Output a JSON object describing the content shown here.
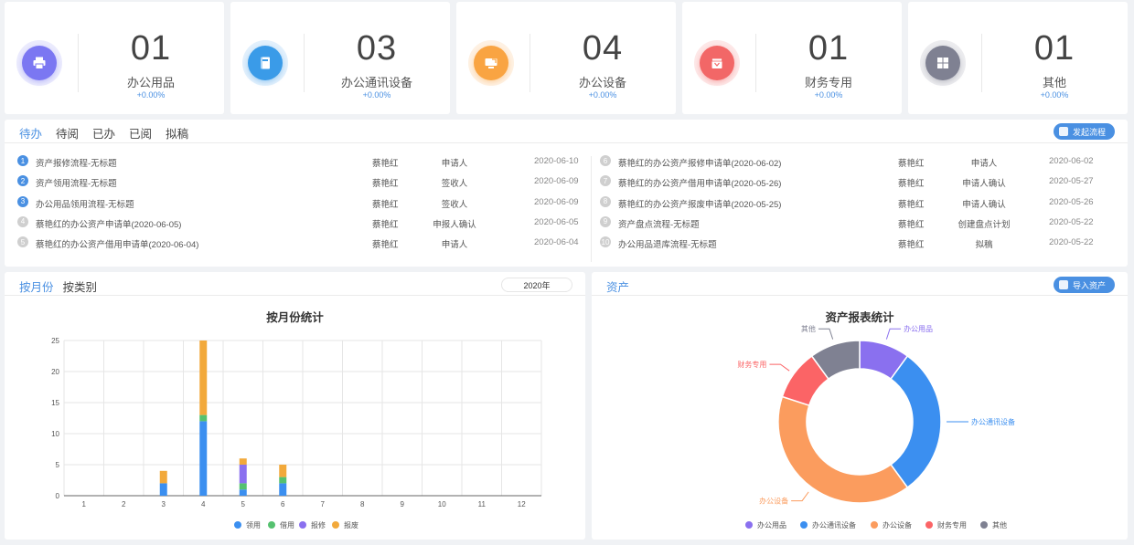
{
  "stats": [
    {
      "num": "01",
      "name": "办公用品",
      "pct": "+0.00%",
      "icon": "printer-icon",
      "color": "#7b77f2"
    },
    {
      "num": "03",
      "name": "办公通讯设备",
      "pct": "+0.00%",
      "icon": "phonebook-icon",
      "color": "#3a9be8"
    },
    {
      "num": "04",
      "name": "办公设备",
      "pct": "+0.00%",
      "icon": "device-icon",
      "color": "#f9a442"
    },
    {
      "num": "01",
      "name": "财务专用",
      "pct": "+0.00%",
      "icon": "finance-icon",
      "color": "#f26767"
    },
    {
      "num": "01",
      "name": "其他",
      "pct": "+0.00%",
      "icon": "grid-icon",
      "color": "#7f8192"
    }
  ],
  "todo": {
    "tabs": [
      "待办",
      "待阅",
      "已办",
      "已阅",
      "拟稿"
    ],
    "start_button": "发起流程",
    "left": [
      {
        "n": "1",
        "title": "资产报修流程-无标题",
        "person": "蔡艳红",
        "role": "申请人",
        "date": "2020-06-10"
      },
      {
        "n": "2",
        "title": "资产领用流程-无标题",
        "person": "蔡艳红",
        "role": "签收人",
        "date": "2020-06-09"
      },
      {
        "n": "3",
        "title": "办公用品领用流程-无标题",
        "person": "蔡艳红",
        "role": "签收人",
        "date": "2020-06-09"
      },
      {
        "n": "4",
        "title": "蔡艳红的办公资产申请单(2020-06-05)",
        "person": "蔡艳红",
        "role": "申报人确认",
        "date": "2020-06-05"
      },
      {
        "n": "5",
        "title": "蔡艳红的办公资产借用申请单(2020-06-04)",
        "person": "蔡艳红",
        "role": "申请人",
        "date": "2020-06-04"
      }
    ],
    "right": [
      {
        "n": "6",
        "title": "蔡艳红的办公资产报修申请单(2020-06-02)",
        "person": "蔡艳红",
        "role": "申请人",
        "date": "2020-06-02"
      },
      {
        "n": "7",
        "title": "蔡艳红的办公资产借用申请单(2020-05-26)",
        "person": "蔡艳红",
        "role": "申请人确认",
        "date": "2020-05-27"
      },
      {
        "n": "8",
        "title": "蔡艳红的办公资产报废申请单(2020-05-25)",
        "person": "蔡艳红",
        "role": "申请人确认",
        "date": "2020-05-26"
      },
      {
        "n": "9",
        "title": "资产盘点流程-无标题",
        "person": "蔡艳红",
        "role": "创建盘点计划",
        "date": "2020-05-22"
      },
      {
        "n": "10",
        "title": "办公用品退库流程-无标题",
        "person": "蔡艳红",
        "role": "拟稿",
        "date": "2020-05-22"
      }
    ]
  },
  "monthly": {
    "tabs": [
      "按月份",
      "按类别"
    ],
    "year": "2020年"
  },
  "assets": {
    "tab": "资产",
    "import_button": "导入资产"
  },
  "chart_data": [
    {
      "type": "bar",
      "stacked": true,
      "title": "按月份统计",
      "categories": [
        "1",
        "2",
        "3",
        "4",
        "5",
        "6",
        "7",
        "8",
        "9",
        "10",
        "11",
        "12"
      ],
      "ylim": [
        0,
        25
      ],
      "yticks": [
        0,
        5,
        10,
        15,
        20,
        25
      ],
      "grid": true,
      "legend_position": "bottom",
      "series": [
        {
          "name": "领用",
          "color": "#3b8ff0",
          "values": [
            0,
            0,
            2,
            12,
            1,
            2,
            0,
            0,
            0,
            0,
            0,
            0
          ]
        },
        {
          "name": "借用",
          "color": "#55c16f",
          "values": [
            0,
            0,
            0,
            1,
            1,
            1,
            0,
            0,
            0,
            0,
            0,
            0
          ]
        },
        {
          "name": "报修",
          "color": "#8a70ef",
          "values": [
            0,
            0,
            0,
            0,
            3,
            0,
            0,
            0,
            0,
            0,
            0,
            0
          ]
        },
        {
          "name": "报废",
          "color": "#f2a93b",
          "values": [
            0,
            0,
            2,
            12,
            1,
            2,
            0,
            0,
            0,
            0,
            0,
            0
          ]
        }
      ]
    },
    {
      "type": "pie",
      "donut": true,
      "title": "资产报表统计",
      "legend_position": "bottom",
      "slices": [
        {
          "name": "办公用品",
          "value": 1,
          "color": "#8a70ef"
        },
        {
          "name": "办公通讯设备",
          "value": 3,
          "color": "#3b8ff0"
        },
        {
          "name": "办公设备",
          "value": 4,
          "color": "#fb9c5e"
        },
        {
          "name": "财务专用",
          "value": 1,
          "color": "#fb6466"
        },
        {
          "name": "其他",
          "value": 1,
          "color": "#7f8192"
        }
      ]
    }
  ]
}
